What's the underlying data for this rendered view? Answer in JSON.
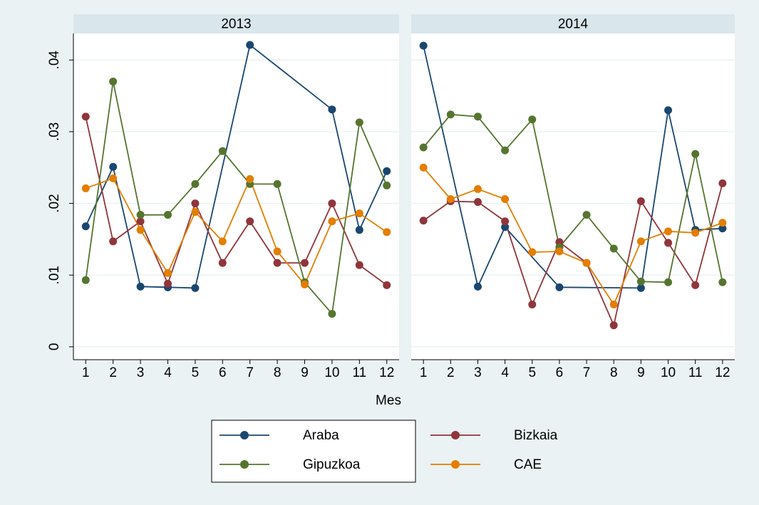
{
  "chart_data": [
    {
      "type": "line",
      "title": "2013",
      "xlim": [
        0.55,
        12.45
      ],
      "xticks": [
        1,
        2,
        3,
        4,
        5,
        6,
        7,
        8,
        9,
        10,
        11,
        12
      ],
      "ylim": [
        -0.0018,
        0.0437
      ],
      "yticks": [
        {
          "value": 0,
          "label": "0"
        },
        {
          "value": 0.01,
          "label": ".01"
        },
        {
          "value": 0.02,
          "label": ".02"
        },
        {
          "value": 0.03,
          "label": ".03"
        },
        {
          "value": 0.04,
          "label": ".04"
        }
      ],
      "grid": true,
      "series": [
        {
          "name": "Araba",
          "color": "#1a476f",
          "x": [
            1,
            2,
            3,
            4,
            5,
            7,
            10,
            11,
            12
          ],
          "values": [
            0.0168,
            0.0251,
            0.0084,
            0.0083,
            0.0082,
            0.0421,
            0.0331,
            0.0163,
            0.0245
          ]
        },
        {
          "name": "Bizkaia",
          "color": "#90353b",
          "x": [
            1,
            2,
            3,
            4,
            5,
            6,
            7,
            8,
            9,
            10,
            11,
            12
          ],
          "values": [
            0.0321,
            0.0147,
            0.0175,
            0.0088,
            0.02,
            0.0117,
            0.0175,
            0.0117,
            0.0117,
            0.02,
            0.0114,
            0.0086
          ]
        },
        {
          "name": "Gipuzkoa",
          "color": "#55752f",
          "x": [
            1,
            2,
            3,
            4,
            5,
            6,
            7,
            8,
            9,
            10,
            11,
            12
          ],
          "values": [
            0.0093,
            0.037,
            0.0184,
            0.0184,
            0.0227,
            0.0273,
            0.0227,
            0.0227,
            0.009,
            0.0046,
            0.0313,
            0.0225
          ]
        },
        {
          "name": "CAE",
          "color": "#e37e00",
          "x": [
            1,
            2,
            3,
            4,
            5,
            6,
            7,
            8,
            9,
            10,
            11,
            12
          ],
          "values": [
            0.0221,
            0.0235,
            0.0163,
            0.0103,
            0.0188,
            0.0147,
            0.0234,
            0.0133,
            0.0087,
            0.0175,
            0.0186,
            0.016
          ]
        }
      ]
    },
    {
      "type": "line",
      "title": "2014",
      "xlim": [
        0.55,
        12.45
      ],
      "xticks": [
        1,
        2,
        3,
        4,
        5,
        6,
        7,
        8,
        9,
        10,
        11,
        12
      ],
      "ylim": [
        -0.0018,
        0.0437
      ],
      "yticks": [
        0,
        0.01,
        0.02,
        0.03,
        0.04
      ],
      "grid": true,
      "series": [
        {
          "name": "Araba",
          "color": "#1a476f",
          "x": [
            1,
            3,
            4,
            6,
            9,
            10,
            11,
            12
          ],
          "values": [
            0.042,
            0.0084,
            0.0167,
            0.0083,
            0.0082,
            0.033,
            0.0163,
            0.0165
          ]
        },
        {
          "name": "Bizkaia",
          "color": "#90353b",
          "x": [
            1,
            2,
            3,
            4,
            5,
            6,
            7,
            8,
            9,
            10,
            11,
            12
          ],
          "values": [
            0.0176,
            0.0203,
            0.0202,
            0.0175,
            0.0059,
            0.0146,
            0.0117,
            0.003,
            0.0203,
            0.0145,
            0.0086,
            0.0228
          ]
        },
        {
          "name": "Gipuzkoa",
          "color": "#55752f",
          "x": [
            1,
            2,
            3,
            4,
            5,
            6,
            7,
            8,
            9,
            10,
            11,
            12
          ],
          "values": [
            0.0278,
            0.0324,
            0.0321,
            0.0274,
            0.0317,
            0.0139,
            0.0184,
            0.0137,
            0.0091,
            0.009,
            0.0269,
            0.009
          ]
        },
        {
          "name": "CAE",
          "color": "#e37e00",
          "x": [
            1,
            2,
            3,
            4,
            5,
            6,
            7,
            8,
            9,
            10,
            11,
            12
          ],
          "values": [
            0.025,
            0.0206,
            0.022,
            0.0206,
            0.0132,
            0.0133,
            0.0117,
            0.0059,
            0.0147,
            0.0161,
            0.0159,
            0.0173
          ]
        }
      ]
    }
  ],
  "xlabel": "Mes"
}
